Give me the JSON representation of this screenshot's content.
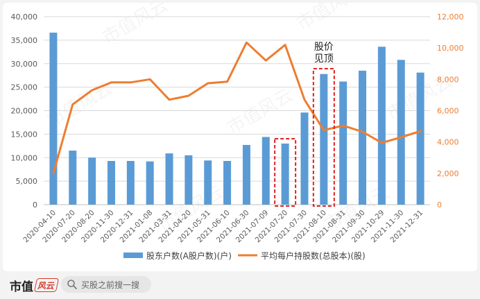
{
  "chart_data": {
    "type": "bar",
    "categories": [
      "2020-04-10",
      "2020-07-20",
      "2020-08-20",
      "2020-11-30",
      "2020-12-31",
      "2021-01-08",
      "2021-03-31",
      "2021-04-20",
      "2021-05-31",
      "2021-06-10",
      "2021-06-30",
      "2021-07-09",
      "2021-07-20",
      "2021-07-30",
      "2021-08-10",
      "2021-08-31",
      "2021-09-30",
      "2021-10-29",
      "2021-11-30",
      "2021-12-31"
    ],
    "series": [
      {
        "name": "股东户数(A股户数)(户)",
        "type": "bar",
        "axis": "left",
        "color": "#5b9bd5",
        "values": [
          36600,
          11500,
          10000,
          9300,
          9300,
          9200,
          10900,
          10500,
          9400,
          9300,
          12700,
          14400,
          13000,
          19600,
          27800,
          26200,
          28500,
          33600,
          30800,
          28100
        ]
      },
      {
        "name": "平均每户持股数(总股本)(股)",
        "type": "line",
        "axis": "right",
        "color": "#ed7d31",
        "values": [
          2000,
          6400,
          7300,
          7800,
          7800,
          8000,
          6700,
          6950,
          7750,
          7850,
          10350,
          9200,
          10200,
          6700,
          4750,
          5050,
          4650,
          3950,
          4300,
          4700
        ]
      }
    ],
    "y_left": {
      "ylim": [
        0,
        40000
      ],
      "ticks": [
        "0",
        "5,000",
        "10,000",
        "15,000",
        "20,000",
        "25,000",
        "30,000",
        "35,000",
        "40,000"
      ]
    },
    "y_right": {
      "ylim": [
        0,
        12000
      ],
      "ticks": [
        "0",
        "2,000",
        "4,000",
        "6,000",
        "8,000",
        "10,000",
        "12,000"
      ]
    },
    "grid": true,
    "legend_position": "bottom",
    "annotation": {
      "lines": [
        "股价",
        "见顶"
      ]
    },
    "highlight_categories": [
      "2021-07-20",
      "2021-08-10"
    ],
    "colors": {
      "left_axis_text": "#595959",
      "right_axis_text": "#ed7d31",
      "grid": "#d9d9d9",
      "highlight": "#e02020"
    }
  },
  "watermark": "市值风云",
  "footer": {
    "brand": "市值",
    "brand_mark": "风云",
    "search_placeholder": "买股之前搜一搜"
  }
}
